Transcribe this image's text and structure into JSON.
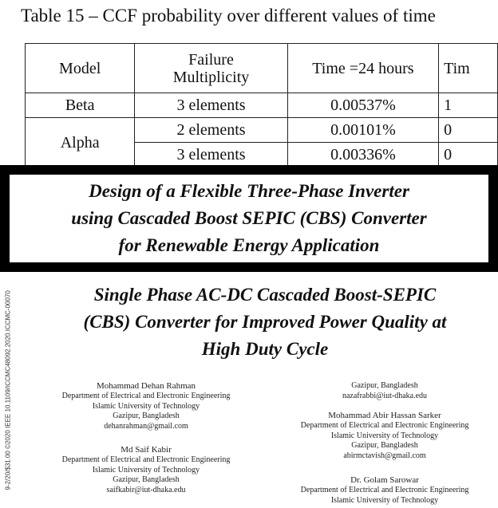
{
  "table_caption": "Table  15 – CCF probability over different values of time",
  "table": {
    "headers": [
      "Model",
      "Failure Multiplicity",
      "Time =24 hours",
      "Time"
    ],
    "header_col2_lines": [
      "Failure",
      "Multiplicity"
    ],
    "header_col4_visible": "Tim",
    "rows": [
      {
        "model": "Beta",
        "multiplicity": "3 elements",
        "t24": "0.00537%",
        "t_next": "1"
      },
      {
        "model": "Alpha",
        "multiplicity": "2 elements",
        "t24": "0.00101%",
        "t_next": "0"
      },
      {
        "model": "",
        "multiplicity": "3 elements",
        "t24": "0.00336%",
        "t_next": "0"
      }
    ]
  },
  "banner_title_lines": [
    "Design of a Flexible Three-Phase Inverter",
    "using Cascaded Boost SEPIC (CBS) Converter",
    "for Renewable Energy Application"
  ],
  "paper_title_lines": [
    "Single Phase AC-DC Cascaded Boost-SEPIC",
    "(CBS) Converter for Improved Power Quality at",
    "High Duty Cycle"
  ],
  "side_identifier": "9-2/20/$31.00 ©2020 IEEE 10.1109/ICCMC48092.2020.ICCMC-00070",
  "authors_left": [
    {
      "name": "Mohammad Dehan Rahman",
      "dept": "Department of Electrical and Electronic Engineering",
      "univ": "Islamic University of Technology",
      "city": "Gazipur, Bangladesh",
      "email": "dehanrahman@gmail.com"
    },
    {
      "name": "Md Saif Kabir",
      "dept": "Department of Electrical and Electronic Engineering",
      "univ": "Islamic University of Technology",
      "city": "Gazipur, Bangladesh",
      "email": "saifkabir@iut-dhaka.edu"
    }
  ],
  "author_right_partial": {
    "city": "Gazipur, Bangladesh",
    "email": "nazafrabbi@iut-dhaka.edu"
  },
  "authors_right": [
    {
      "name": "Mohammad Abir Hassan Sarker",
      "dept": "Department of Electrical and Electronic Engineering",
      "univ": "Islamic University of Technology",
      "city": "Gazipur, Bangladesh",
      "email": "abirmctavish@gmail.com"
    },
    {
      "name": "Dr. Golam Sarowar",
      "dept": "Department of Electrical and Electronic Engineering",
      "univ": "Islamic University of Technology"
    }
  ]
}
